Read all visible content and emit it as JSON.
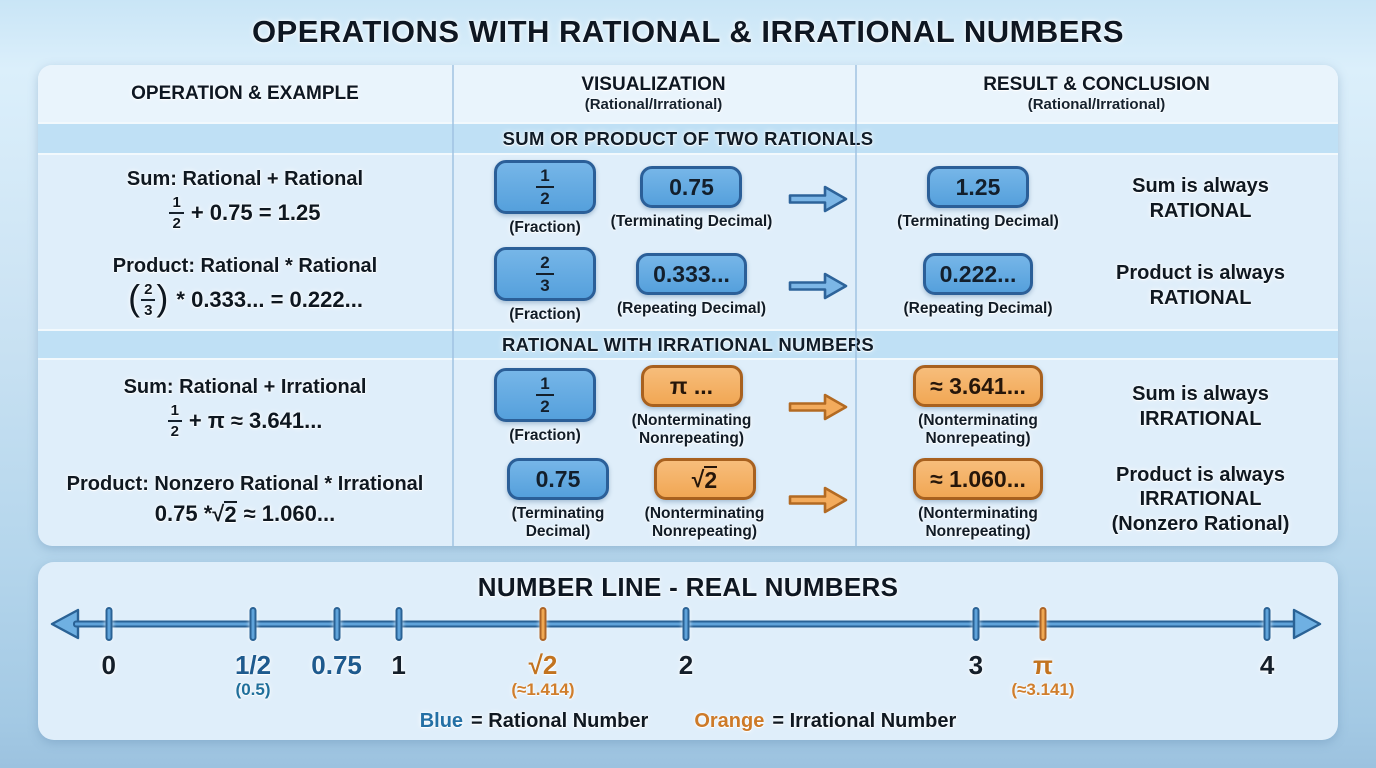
{
  "title": "OPERATIONS WITH RATIONAL & IRRATIONAL NUMBERS",
  "table": {
    "header": [
      {
        "title": "OPERATION & EXAMPLE",
        "subtitle": ""
      },
      {
        "title": "VISUALIZATION",
        "subtitle": "(Rational/Irrational)"
      },
      {
        "title": "RESULT & CONCLUSION",
        "subtitle": "(Rational/Irrational)"
      }
    ],
    "sections": [
      {
        "band": "SUM OR PRODUCT OF TWO RATIONALS",
        "rows": [
          {
            "operation": "Sum: Rational + Rational",
            "formula": {
              "num": "1",
              "den": "2",
              "post": "+ 0.75 = 1.25"
            },
            "viz": [
              {
                "num": "1",
                "den": "2",
                "caption": "(Fraction)"
              },
              {
                "value": "0.75",
                "caption": "(Terminating Decimal)"
              }
            ],
            "result": {
              "value": "1.25",
              "caption": "(Terminating Decimal)"
            },
            "conclusion": [
              "Sum is always",
              "RATIONAL"
            ]
          },
          {
            "operation": "Product: Rational * Rational",
            "formula": {
              "lp": "(",
              "num": "2",
              "den": "3",
              "rp": ")",
              "post": "* 0.333... = 0.222..."
            },
            "viz": [
              {
                "num": "2",
                "den": "3",
                "caption": "(Fraction)"
              },
              {
                "value": "0.333...",
                "caption": "(Repeating Decimal)"
              }
            ],
            "result": {
              "value": "0.222...",
              "caption": "(Repeating Decimal)"
            },
            "conclusion": [
              "Product is always",
              "RATIONAL"
            ]
          }
        ]
      },
      {
        "band": "RATIONAL WITH IRRATIONAL NUMBERS",
        "rows": [
          {
            "operation": "Sum: Rational + Irrational",
            "formula": {
              "num": "1",
              "den": "2",
              "post": "+ π ≈ 3.641..."
            },
            "viz": [
              {
                "num": "1",
                "den": "2",
                "caption": "(Fraction)"
              },
              {
                "value": "π ...",
                "caption": "(Nonterminating Nonrepeating)"
              }
            ],
            "result": {
              "value": "≈ 3.641...",
              "caption": "(Nonterminating Nonrepeating)"
            },
            "conclusion": [
              "Sum is always",
              "IRRATIONAL"
            ]
          },
          {
            "operation": "Product: Nonzero Rational * Irrational",
            "formula": {
              "pre": "0.75 * ",
              "radical": "√",
              "arg": "2",
              "post": "≈ 1.060..."
            },
            "viz": [
              {
                "value": "0.75",
                "caption": "(Terminating Decimal)"
              },
              {
                "radical": "√",
                "arg": "2",
                "caption": "(Nonterminating Nonrepeating)"
              }
            ],
            "result": {
              "value": "≈ 1.060...",
              "caption": "(Nonterminating Nonrepeating)"
            },
            "conclusion": [
              "Product is always",
              "IRRATIONAL",
              "(Nonzero Rational)"
            ]
          }
        ]
      }
    ]
  },
  "numberline": {
    "title": "NUMBER LINE - REAL NUMBERS",
    "points": [
      {
        "label": "0",
        "sub": "",
        "pos": 4.4,
        "style": "int"
      },
      {
        "label": "1/2",
        "sub": "(0.5)",
        "pos": 15.8,
        "style": "blue"
      },
      {
        "label": "0.75",
        "sub": "",
        "pos": 22.4,
        "style": "blue"
      },
      {
        "label": "1",
        "sub": "",
        "pos": 27.3,
        "style": "int"
      },
      {
        "label": "√2",
        "sub": "(≈1.414)",
        "pos": 38.7,
        "style": "orange"
      },
      {
        "label": "2",
        "sub": "",
        "pos": 50.0,
        "style": "int"
      },
      {
        "label": "3",
        "sub": "",
        "pos": 72.9,
        "style": "int"
      },
      {
        "label": "π",
        "sub": "(≈3.141)",
        "pos": 78.2,
        "style": "orange"
      },
      {
        "label": "4",
        "sub": "",
        "pos": 95.9,
        "style": "int"
      }
    ],
    "legend": [
      {
        "word": "Blue",
        "rest": "= Rational Number"
      },
      {
        "word": "Orange",
        "rest": "= Irrational Number"
      }
    ],
    "colors": {
      "rational": "#2470a5",
      "irrational": "#cd7a28"
    }
  }
}
